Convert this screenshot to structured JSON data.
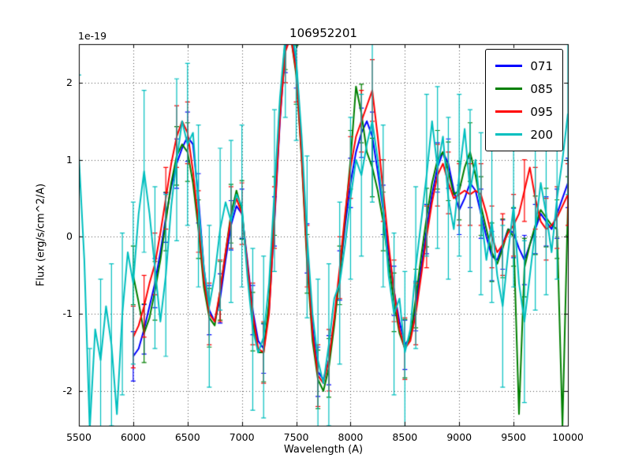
{
  "chart_data": {
    "type": "line",
    "title": "106952201",
    "xlabel": "Wavelength (A)",
    "ylabel": "Flux (erg/s/cm^2/A)",
    "y_scale_label": "1e-19",
    "xlim": [
      5500,
      10000
    ],
    "ylim": [
      -2.45,
      2.5
    ],
    "xticks": [
      5500,
      6000,
      6500,
      7000,
      7500,
      8000,
      8500,
      9000,
      9500,
      10000
    ],
    "xtick_labels": [
      "5500",
      "6000",
      "6500",
      "7000",
      "7500",
      "8000",
      "8500",
      "9000",
      "9500",
      "10000"
    ],
    "yticks": [
      -2,
      -1,
      0,
      1,
      2
    ],
    "ytick_labels": [
      "-2",
      "-1",
      "0",
      "1",
      "2"
    ],
    "grid": true,
    "grid_style": "dotted",
    "legend": {
      "position": "upper right",
      "entries": [
        "071",
        "085",
        "095",
        "200"
      ]
    },
    "series": [
      {
        "name": "071",
        "color": "#0000ff",
        "x_start": 6000,
        "x_step": 50,
        "yerr": 0.32,
        "err_every": 2,
        "values": [
          -1.55,
          -1.45,
          -1.2,
          -0.9,
          -0.6,
          -0.2,
          0.25,
          0.65,
          0.95,
          1.15,
          1.3,
          1.2,
          0.5,
          -0.4,
          -0.95,
          -1.1,
          -0.8,
          -0.3,
          0.15,
          0.4,
          0.3,
          -0.3,
          -0.95,
          -1.35,
          -1.45,
          -0.95,
          0.2,
          1.5,
          2.45,
          2.7,
          2.25,
          1.15,
          -0.15,
          -1.15,
          -1.75,
          -1.85,
          -1.6,
          -1.1,
          -0.5,
          0.15,
          0.7,
          1.1,
          1.35,
          1.5,
          1.3,
          0.85,
          0.35,
          -0.2,
          -0.7,
          -1.1,
          -1.4,
          -1.3,
          -0.9,
          -0.4,
          0.1,
          0.55,
          0.9,
          1.1,
          0.95,
          0.6,
          0.35,
          0.5,
          0.7,
          0.6,
          0.3,
          0.0,
          -0.25,
          -0.3,
          -0.1,
          0.1,
          0.05,
          -0.15,
          -0.3,
          -0.1,
          0.1,
          0.3,
          0.2,
          0.1,
          0.3,
          0.5,
          0.7
        ]
      },
      {
        "name": "085",
        "color": "#007f00",
        "x_start": 6000,
        "x_step": 50,
        "yerr": 0.38,
        "err_every": 2,
        "values": [
          -0.5,
          -0.85,
          -1.25,
          -1.05,
          -0.7,
          -0.3,
          0.2,
          0.7,
          1.05,
          1.2,
          1.1,
          0.7,
          0.1,
          -0.65,
          -1.05,
          -1.15,
          -0.7,
          -0.2,
          0.3,
          0.6,
          0.35,
          -0.4,
          -1.1,
          -1.5,
          -1.5,
          -0.85,
          0.4,
          1.7,
          2.55,
          2.6,
          2.1,
          1.0,
          -0.35,
          -1.35,
          -1.85,
          -2.0,
          -1.7,
          -1.15,
          -0.5,
          0.25,
          1.0,
          1.95,
          1.6,
          1.1,
          0.9,
          0.6,
          0.2,
          -0.35,
          -0.85,
          -1.25,
          -1.45,
          -1.3,
          -0.8,
          -0.25,
          0.25,
          0.7,
          1.0,
          1.1,
          0.85,
          0.55,
          0.6,
          0.9,
          1.1,
          0.8,
          0.4,
          0.1,
          -0.2,
          -0.35,
          -0.15,
          0.1,
          0.0,
          -2.3,
          -0.4,
          -0.1,
          0.15,
          0.35,
          0.25,
          0.15,
          0.1,
          -2.45,
          0.4
        ]
      },
      {
        "name": "095",
        "color": "#ff0000",
        "x_start": 6000,
        "x_step": 50,
        "yerr": 0.4,
        "err_every": 2,
        "values": [
          -1.3,
          -1.15,
          -0.9,
          -0.6,
          -0.35,
          0.05,
          0.5,
          0.95,
          1.3,
          1.5,
          1.35,
          0.85,
          0.2,
          -0.55,
          -1.0,
          -1.1,
          -0.7,
          -0.2,
          0.25,
          0.5,
          0.3,
          -0.35,
          -1.0,
          -1.45,
          -1.5,
          -1.0,
          0.25,
          1.55,
          2.4,
          2.6,
          2.15,
          1.05,
          -0.25,
          -1.25,
          -1.8,
          -1.9,
          -1.6,
          -1.05,
          -0.4,
          0.3,
          0.9,
          1.3,
          1.5,
          1.7,
          1.9,
          1.3,
          0.6,
          -0.1,
          -0.7,
          -1.2,
          -1.45,
          -1.35,
          -1.0,
          -0.5,
          0.0,
          0.45,
          0.8,
          0.95,
          0.7,
          0.5,
          0.55,
          0.6,
          0.55,
          0.6,
          0.55,
          0.3,
          0.0,
          -0.2,
          -0.1,
          0.05,
          0.15,
          0.3,
          0.6,
          0.9,
          0.5,
          0.2,
          0.1,
          0.15,
          0.25,
          0.4,
          0.55
        ]
      },
      {
        "name": "200",
        "color": "#00bfbf",
        "x_start": 5500,
        "x_step": 50,
        "yerr": 1.05,
        "err_every": 2,
        "values": [
          1.05,
          -0.3,
          -2.5,
          -1.2,
          -1.6,
          -0.9,
          -1.4,
          -2.3,
          -1.0,
          -0.2,
          -0.6,
          0.3,
          0.85,
          0.3,
          -0.4,
          -1.1,
          -0.5,
          0.4,
          1.0,
          1.5,
          1.2,
          1.35,
          0.4,
          -0.4,
          -0.9,
          -0.5,
          0.1,
          0.45,
          0.2,
          0.55,
          0.4,
          -0.5,
          -1.2,
          -1.5,
          -1.3,
          -0.6,
          0.6,
          1.8,
          2.6,
          2.75,
          2.3,
          1.3,
          0.0,
          -1.0,
          -1.6,
          -1.9,
          -1.4,
          -0.8,
          -0.6,
          -0.1,
          0.5,
          1.0,
          0.8,
          1.2,
          1.5,
          1.0,
          0.4,
          -0.5,
          -1.0,
          -0.8,
          -1.5,
          -1.2,
          -0.4,
          0.2,
          0.8,
          1.5,
          0.9,
          1.3,
          0.5,
          0.1,
          0.8,
          1.4,
          0.6,
          1.0,
          0.3,
          -0.3,
          0.2,
          -0.5,
          -0.9,
          -0.2,
          0.4,
          -0.6,
          -1.1,
          -0.5,
          0.1,
          0.7,
          0.3,
          -0.2,
          0.5,
          1.0,
          1.6
        ]
      }
    ]
  }
}
